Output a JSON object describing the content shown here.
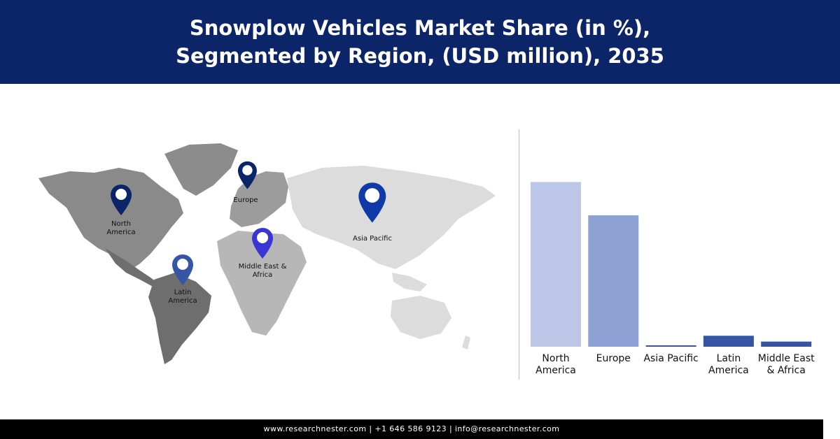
{
  "header": {
    "title_line1": "Snowplow Vehicles Market Share (in %),",
    "title_line2": "Segmented by Region, (USD million), 2035"
  },
  "map": {
    "pins": [
      {
        "id": "north-america",
        "label": "North\nAmerica",
        "color": "#0c2468"
      },
      {
        "id": "europe",
        "label": "Europe",
        "color": "#0c2468"
      },
      {
        "id": "asia-pacific",
        "label": "Asia Pacific",
        "color": "#0f3aa8"
      },
      {
        "id": "middle-east-africa",
        "label": "Middle East &\nAfrica",
        "color": "#3a36d6"
      },
      {
        "id": "latin-america",
        "label": "Latin\nAmerica",
        "color": "#3556a6"
      }
    ]
  },
  "chart_data": {
    "type": "bar",
    "categories": [
      "North\nAmerica",
      "Europe",
      "Asia Pacific",
      "Latin\nAmerica",
      "Middle East\n& Africa"
    ],
    "values": [
      48,
      38.3,
      0.4,
      3.2,
      1.5
    ],
    "colors": [
      "#bcc6e6",
      "#8fa2d6",
      "#3153a5",
      "#3555a3",
      "#3555a3"
    ],
    "ylim": [
      0,
      55
    ],
    "grid": false,
    "title": "",
    "xlabel": "",
    "ylabel": ""
  },
  "footer": {
    "text": "www.researchnester.com | +1 646 586 9123 | info@researchnester.com"
  }
}
